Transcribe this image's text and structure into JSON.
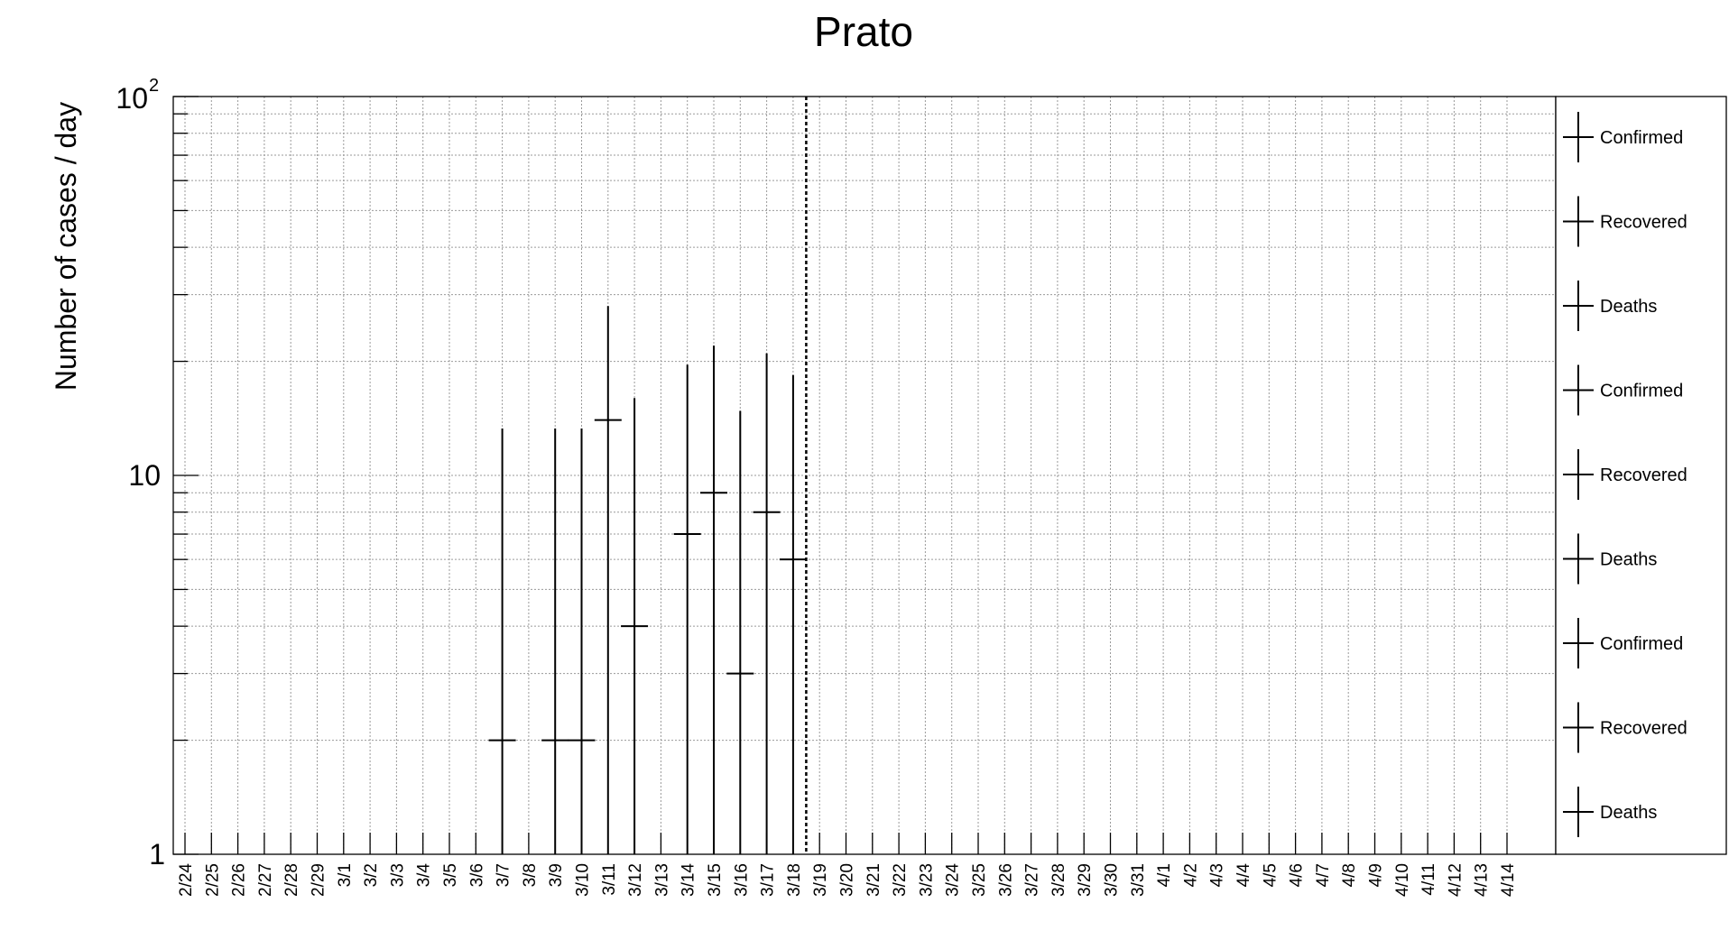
{
  "chart_data": {
    "type": "scatter",
    "title": "Prato",
    "xlabel": "",
    "ylabel": "Number of cases / day",
    "yscale": "log",
    "ylim": [
      1,
      100
    ],
    "grid": true,
    "legend_position": "right",
    "ytick_labels": {
      "t1": "1",
      "t10": "10",
      "t100_base": "10",
      "t100_exp": "2"
    },
    "categories": [
      "2/24",
      "2/25",
      "2/26",
      "2/27",
      "2/28",
      "2/29",
      "3/1",
      "3/2",
      "3/3",
      "3/4",
      "3/5",
      "3/6",
      "3/7",
      "3/8",
      "3/9",
      "3/10",
      "3/11",
      "3/12",
      "3/13",
      "3/14",
      "3/15",
      "3/16",
      "3/17",
      "3/18",
      "3/19",
      "3/20",
      "3/21",
      "3/22",
      "3/23",
      "3/24",
      "3/25",
      "3/26",
      "3/27",
      "3/28",
      "3/29",
      "3/30",
      "3/31",
      "4/1",
      "4/2",
      "4/3",
      "4/4",
      "4/5",
      "4/6",
      "4/7",
      "4/8",
      "4/9",
      "4/10",
      "4/11",
      "4/12",
      "4/13",
      "4/14"
    ],
    "marker_date": "3/18",
    "series": [
      {
        "name": "Confirmed",
        "points": [
          {
            "x": "3/7",
            "y": 2,
            "err_high": 13.3
          },
          {
            "x": "3/9",
            "y": 2,
            "err_high": 13.3
          },
          {
            "x": "3/10",
            "y": 2,
            "err_high": 13.3
          },
          {
            "x": "3/11",
            "y": 14,
            "err_high": 28
          },
          {
            "x": "3/12",
            "y": 4,
            "err_high": 16
          },
          {
            "x": "3/14",
            "y": 7,
            "err_high": 19.6
          },
          {
            "x": "3/15",
            "y": 9,
            "err_high": 22
          },
          {
            "x": "3/16",
            "y": 3,
            "err_high": 14.8
          },
          {
            "x": "3/17",
            "y": 8,
            "err_high": 21
          },
          {
            "x": "3/18",
            "y": 6,
            "err_high": 18.4
          }
        ]
      }
    ],
    "legend": [
      "Confirmed",
      "Recovered",
      "Deaths",
      "Confirmed",
      "Recovered",
      "Deaths",
      "Confirmed",
      "Recovered",
      "Deaths"
    ]
  }
}
